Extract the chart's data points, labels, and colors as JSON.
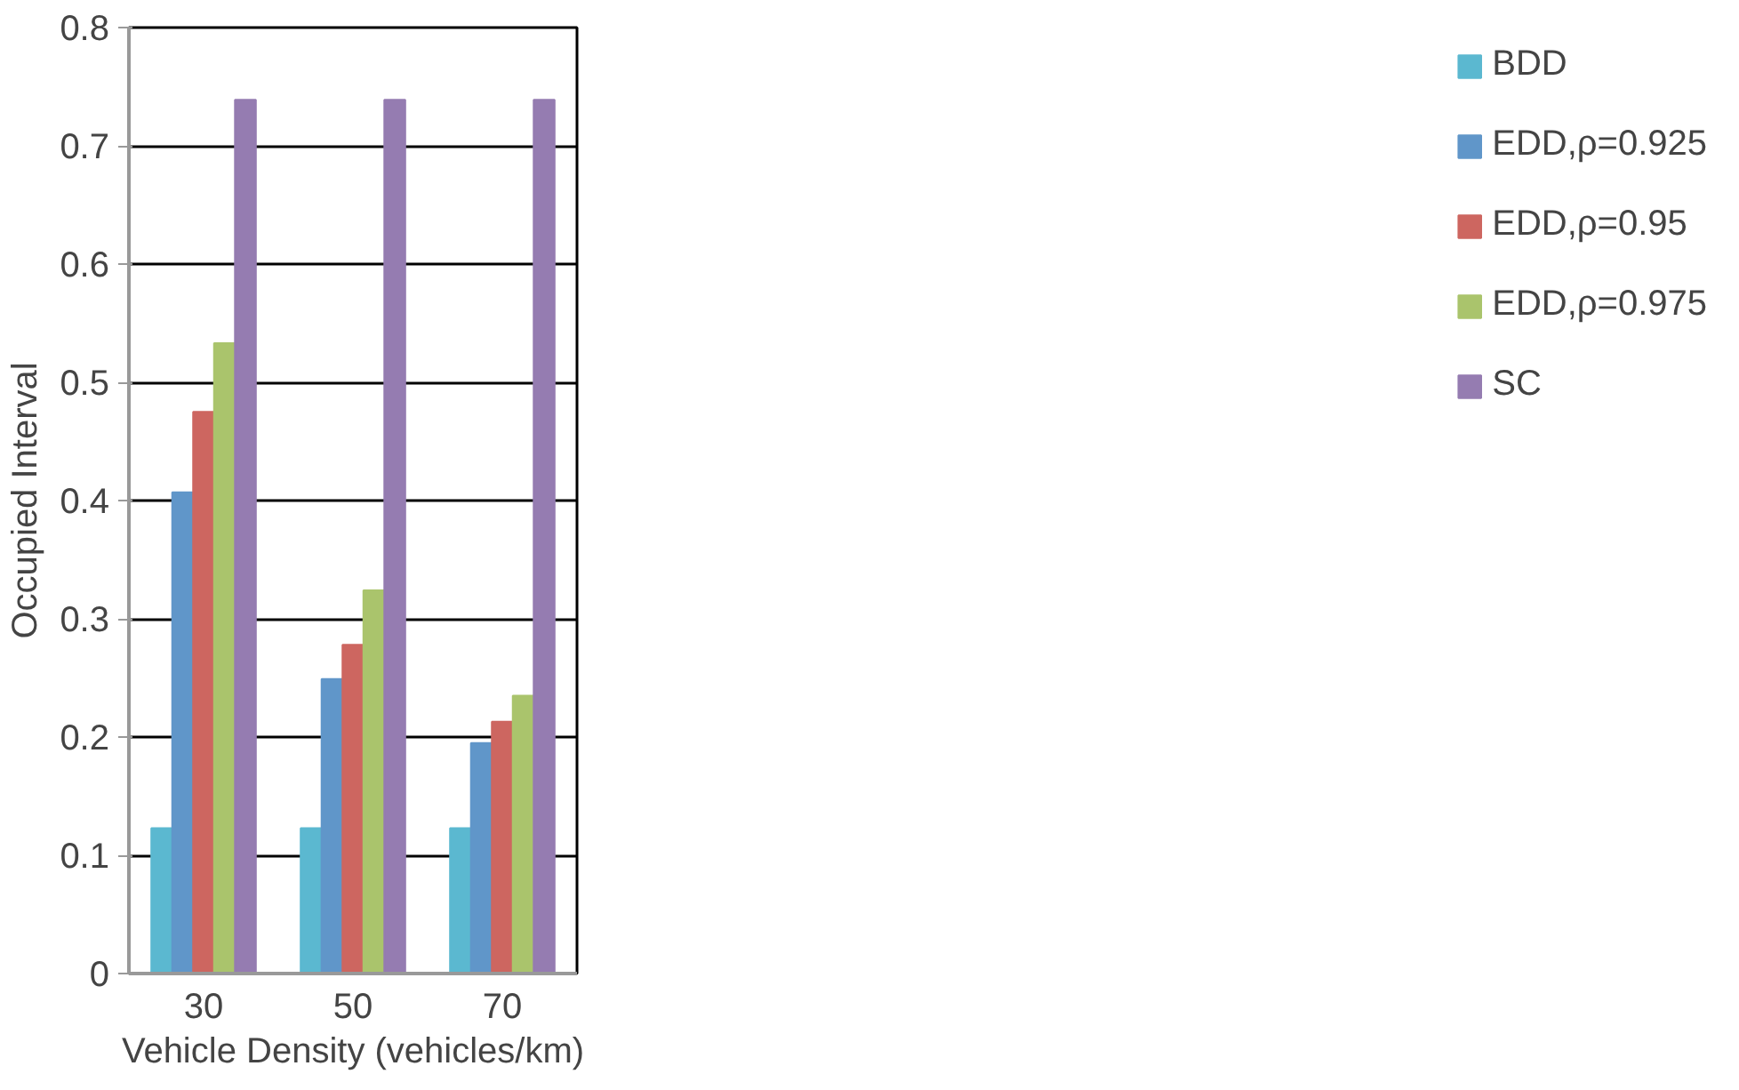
{
  "chart_data": {
    "type": "bar",
    "xlabel": "Vehicle Density (vehicles/km)",
    "ylabel": "Occupied Interval",
    "categories": [
      "30",
      "50",
      "70"
    ],
    "series": [
      {
        "name": "BDD",
        "color": "#5bb8d0",
        "values": [
          0.123,
          0.123,
          0.123
        ]
      },
      {
        "name": "EDD,ρ=0.925",
        "color": "#6096c9",
        "values": [
          0.407,
          0.249,
          0.195
        ]
      },
      {
        "name": "EDD,ρ=0.95",
        "color": "#cd6660",
        "values": [
          0.475,
          0.278,
          0.213
        ]
      },
      {
        "name": "EDD,ρ=0.975",
        "color": "#aac46c",
        "values": [
          0.533,
          0.324,
          0.235
        ]
      },
      {
        "name": "SC",
        "color": "#957cb1",
        "values": [
          0.739,
          0.739,
          0.739
        ]
      }
    ],
    "ylim": [
      0,
      0.8
    ],
    "yticks": [
      {
        "value": 0,
        "label": "0"
      },
      0.1,
      0.2,
      0.3,
      0.4,
      0.5,
      0.6,
      0.7,
      0.8
    ],
    "grid": "y",
    "legend": "right"
  }
}
